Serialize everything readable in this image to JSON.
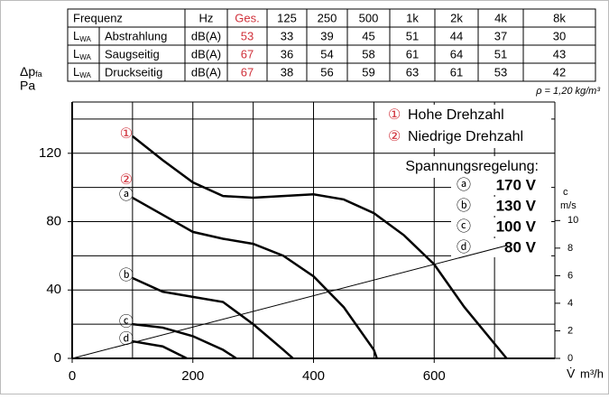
{
  "table": {
    "header": [
      "Frequenz",
      "Hz",
      "Ges.",
      "125",
      "250",
      "500",
      "1k",
      "2k",
      "4k",
      "8k"
    ],
    "highlight_color": "#d0303a",
    "rows": [
      {
        "sym": "L",
        "sub": "WA",
        "label": "Abstrahlung",
        "unit": "dB(A)",
        "values": [
          "53",
          "33",
          "39",
          "45",
          "51",
          "44",
          "37",
          "30"
        ]
      },
      {
        "sym": "L",
        "sub": "WA",
        "label": "Saugseitig",
        "unit": "dB(A)",
        "values": [
          "67",
          "36",
          "54",
          "58",
          "61",
          "64",
          "51",
          "43"
        ]
      },
      {
        "sym": "L",
        "sub": "WA",
        "label": "Druckseitig",
        "unit": "dB(A)",
        "values": [
          "67",
          "38",
          "56",
          "59",
          "63",
          "61",
          "53",
          "42"
        ]
      }
    ],
    "note": "ρ = 1,20 kg/m³"
  },
  "chart_data": {
    "type": "line",
    "y_label_symbol": "Δp",
    "y_label_sub": "fa",
    "y_label_unit": "Pa",
    "x_label_symbol": "V̇",
    "x_label_unit": "m³/h",
    "y2_label_symbol": "c",
    "y2_label_unit": "m/s",
    "xlim": [
      0,
      800
    ],
    "xticks": [
      0,
      200,
      400,
      600
    ],
    "xgrid": [
      100,
      200,
      300,
      400,
      500,
      600,
      700
    ],
    "ylim": [
      0,
      150
    ],
    "yticks": [
      0,
      40,
      80,
      120
    ],
    "ygrid": [
      20,
      40,
      60,
      80,
      100,
      120,
      140
    ],
    "y2lim": [
      0,
      18.6
    ],
    "y2ticks": [
      0,
      2,
      4,
      6,
      8,
      10
    ],
    "grid": true,
    "label_color": "#d0303a",
    "series": [
      {
        "labels": [
          "①"
        ],
        "label_red": true,
        "color": "#000000",
        "x": [
          100,
          150,
          200,
          250,
          300,
          350,
          400,
          450,
          500,
          550,
          600,
          650,
          720
        ],
        "values": [
          130,
          116,
          103,
          95,
          94,
          95,
          96,
          93,
          85,
          72,
          55,
          30,
          0
        ]
      },
      {
        "labels": [
          "②",
          "ⓐ"
        ],
        "label_red": true,
        "color": "#000000",
        "x": [
          100,
          150,
          200,
          250,
          300,
          350,
          400,
          450,
          500,
          505
        ],
        "values": [
          94,
          84,
          74,
          70,
          67,
          60,
          48,
          30,
          5,
          0
        ]
      },
      {
        "labels": [
          "ⓑ"
        ],
        "color": "#000000",
        "x": [
          100,
          150,
          200,
          250,
          300,
          350,
          366
        ],
        "values": [
          47,
          39,
          36,
          33,
          20,
          5,
          0
        ]
      },
      {
        "labels": [
          "ⓒ"
        ],
        "color": "#000000",
        "x": [
          100,
          150,
          200,
          250,
          272
        ],
        "values": [
          20,
          18,
          13,
          5,
          0
        ]
      },
      {
        "labels": [
          "ⓓ"
        ],
        "color": "#000000",
        "x": [
          100,
          150,
          190
        ],
        "values": [
          10,
          7,
          0
        ]
      },
      {
        "color": "#000000",
        "width": 1,
        "x": [
          0,
          720
        ],
        "values": [
          0,
          66
        ]
      }
    ],
    "legend": [
      {
        "symbol": "①",
        "text": "Hohe Drehzahl"
      },
      {
        "symbol": "②",
        "text": "Niedrige Drehzahl"
      }
    ],
    "legend_title": "Spannungsregelung:",
    "voltages": [
      {
        "symbol": "ⓐ",
        "text": "170 V"
      },
      {
        "symbol": "ⓑ",
        "text": "130 V"
      },
      {
        "symbol": "ⓒ",
        "text": "100 V"
      },
      {
        "symbol": "ⓓ",
        "text": "80 V"
      }
    ]
  }
}
